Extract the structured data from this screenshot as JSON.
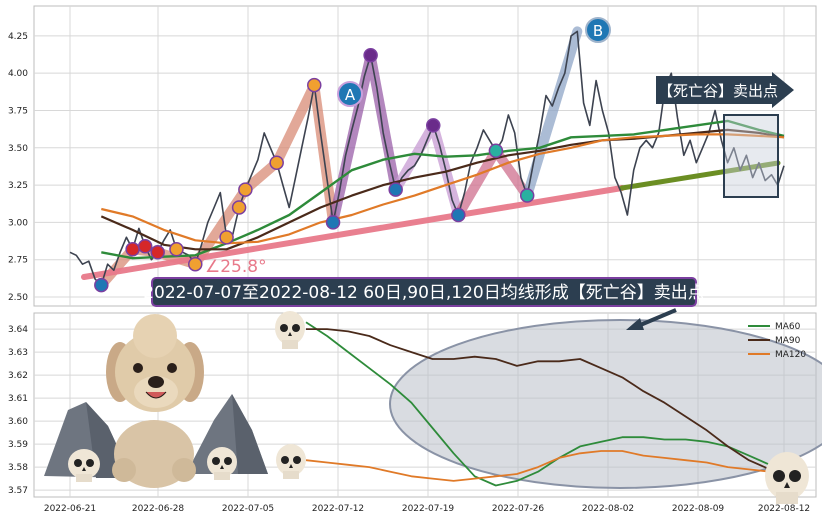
{
  "colors": {
    "price": "#3d4350",
    "ma60": "#2e8b3a",
    "ma90": "#4a2a1a",
    "ma120": "#e07a28",
    "trend": "#e8798a",
    "trend_future": "#6b8e23",
    "banner_bg": "#2c3e50",
    "banner_border": "#7b3fa0",
    "marker_red": "#d62728",
    "marker_orange": "#f0a030",
    "marker_blue": "#1f77b4",
    "marker_teal": "#2ab0a0",
    "marker_purple": "#6a2b8a",
    "ellipse": "#8a93a6"
  },
  "icons": [
    "skull-icon",
    "poodle-mascot",
    "arrow-icon"
  ],
  "annotations": {
    "banner": "2022-07-07至2022-08-12 60日,90日,120日均线形成【死亡谷】卖出点",
    "sign": "【死亡谷】卖出点",
    "angle": "∠25.8°",
    "wave_a": "A",
    "wave_b": "B"
  },
  "chart_data": [
    {
      "type": "line",
      "x_dates": [
        "2022-06-21",
        "2022-06-28",
        "2022-07-05",
        "2022-07-12",
        "2022-07-19",
        "2022-07-26",
        "2022-08-02",
        "2022-08-09",
        "2022-08-12"
      ],
      "yticks": [
        2.5,
        2.75,
        3.0,
        3.25,
        3.5,
        3.75,
        4.0,
        4.25
      ],
      "ylim": [
        2.44,
        4.45
      ],
      "grid": true,
      "series": [
        {
          "values": [
            [
              0,
              2.8
            ],
            [
              1,
              2.78
            ],
            [
              2,
              2.72
            ],
            [
              3,
              2.74
            ],
            [
              4,
              2.62
            ],
            [
              5,
              2.58
            ],
            [
              6,
              2.72
            ],
            [
              7,
              2.68
            ],
            [
              8,
              2.8
            ],
            [
              9,
              2.9
            ],
            [
              10,
              2.82
            ],
            [
              11,
              2.96
            ],
            [
              12,
              2.84
            ],
            [
              13,
              2.75
            ],
            [
              14,
              2.8
            ],
            [
              15,
              2.88
            ],
            [
              16,
              2.95
            ],
            [
              17,
              2.82
            ],
            [
              18,
              2.8
            ],
            [
              19,
              2.78
            ],
            [
              20,
              2.72
            ],
            [
              21,
              2.85
            ],
            [
              22,
              3.0
            ],
            [
              23,
              3.1
            ],
            [
              24,
              3.2
            ],
            [
              25,
              2.9
            ],
            [
              26,
              2.92
            ],
            [
              27,
              3.1
            ],
            [
              28,
              3.22
            ],
            [
              29,
              3.32
            ],
            [
              30,
              3.42
            ],
            [
              31,
              3.6
            ],
            [
              32,
              3.5
            ],
            [
              33,
              3.4
            ],
            [
              34,
              3.25
            ],
            [
              35,
              3.1
            ],
            [
              36,
              3.3
            ],
            [
              37,
              3.5
            ],
            [
              38,
              3.7
            ],
            [
              39,
              3.92
            ],
            [
              40,
              3.6
            ],
            [
              41,
              3.3
            ],
            [
              42,
              3.0
            ],
            [
              43,
              3.2
            ],
            [
              44,
              3.45
            ],
            [
              45,
              3.62
            ],
            [
              46,
              3.78
            ],
            [
              47,
              3.98
            ],
            [
              48,
              4.12
            ],
            [
              49,
              3.9
            ],
            [
              50,
              3.6
            ],
            [
              51,
              3.4
            ],
            [
              52,
              3.22
            ],
            [
              53,
              3.3
            ],
            [
              54,
              3.35
            ],
            [
              55,
              3.38
            ],
            [
              56,
              3.45
            ],
            [
              57,
              3.55
            ],
            [
              58,
              3.65
            ],
            [
              59,
              3.52
            ],
            [
              60,
              3.35
            ],
            [
              61,
              3.15
            ],
            [
              62,
              3.05
            ],
            [
              63,
              3.2
            ],
            [
              64,
              3.4
            ],
            [
              65,
              3.5
            ],
            [
              66,
              3.62
            ],
            [
              67,
              3.55
            ],
            [
              68,
              3.48
            ],
            [
              69,
              3.55
            ],
            [
              70,
              3.72
            ],
            [
              71,
              3.6
            ],
            [
              72,
              3.3
            ],
            [
              73,
              3.18
            ],
            [
              74,
              3.4
            ],
            [
              75,
              3.6
            ],
            [
              76,
              3.85
            ],
            [
              77,
              3.78
            ],
            [
              78,
              3.9
            ],
            [
              79,
              4.0
            ],
            [
              80,
              4.25
            ],
            [
              81,
              4.28
            ],
            [
              82,
              3.8
            ],
            [
              83,
              3.65
            ],
            [
              84,
              3.95
            ],
            [
              85,
              3.75
            ],
            [
              86,
              3.6
            ],
            [
              87,
              3.3
            ],
            [
              88,
              3.2
            ],
            [
              89,
              3.05
            ],
            [
              90,
              3.35
            ],
            [
              91,
              3.5
            ],
            [
              92,
              3.55
            ],
            [
              93,
              3.5
            ],
            [
              94,
              3.6
            ],
            [
              95,
              3.9
            ],
            [
              96,
              4.0
            ],
            [
              97,
              3.7
            ],
            [
              98,
              3.45
            ],
            [
              99,
              3.55
            ],
            [
              100,
              3.4
            ],
            [
              101,
              3.5
            ],
            [
              102,
              3.6
            ],
            [
              103,
              3.75
            ],
            [
              104,
              3.55
            ],
            [
              105,
              3.4
            ],
            [
              106,
              3.5
            ],
            [
              107,
              3.35
            ],
            [
              108,
              3.45
            ],
            [
              109,
              3.3
            ],
            [
              110,
              3.4
            ],
            [
              111,
              3.28
            ],
            [
              112,
              3.32
            ],
            [
              113,
              3.25
            ],
            [
              114,
              3.38
            ]
          ]
        },
        {
          "values": [
            [
              5,
              2.8
            ],
            [
              10,
              2.76
            ],
            [
              15,
              2.77
            ],
            [
              20,
              2.78
            ],
            [
              25,
              2.86
            ],
            [
              30,
              2.95
            ],
            [
              35,
              3.05
            ],
            [
              40,
              3.2
            ],
            [
              45,
              3.35
            ],
            [
              50,
              3.42
            ],
            [
              55,
              3.46
            ],
            [
              60,
              3.44
            ],
            [
              65,
              3.45
            ],
            [
              70,
              3.48
            ],
            [
              75,
              3.5
            ],
            [
              80,
              3.57
            ],
            [
              85,
              3.58
            ],
            [
              90,
              3.59
            ],
            [
              95,
              3.62
            ],
            [
              100,
              3.65
            ],
            [
              105,
              3.68
            ],
            [
              110,
              3.62
            ],
            [
              114,
              3.58
            ]
          ]
        },
        {
          "values": [
            [
              5,
              3.04
            ],
            [
              10,
              2.95
            ],
            [
              15,
              2.85
            ],
            [
              20,
              2.82
            ],
            [
              25,
              2.82
            ],
            [
              30,
              2.9
            ],
            [
              35,
              3.0
            ],
            [
              40,
              3.1
            ],
            [
              45,
              3.18
            ],
            [
              50,
              3.25
            ],
            [
              55,
              3.3
            ],
            [
              60,
              3.34
            ],
            [
              65,
              3.4
            ],
            [
              70,
              3.45
            ],
            [
              75,
              3.48
            ],
            [
              80,
              3.52
            ],
            [
              85,
              3.55
            ],
            [
              90,
              3.56
            ],
            [
              95,
              3.58
            ],
            [
              100,
              3.6
            ],
            [
              105,
              3.62
            ],
            [
              110,
              3.6
            ],
            [
              114,
              3.57
            ]
          ]
        },
        {
          "values": [
            [
              5,
              3.09
            ],
            [
              10,
              3.04
            ],
            [
              15,
              2.95
            ],
            [
              20,
              2.88
            ],
            [
              25,
              2.86
            ],
            [
              30,
              2.87
            ],
            [
              35,
              2.92
            ],
            [
              40,
              3.0
            ],
            [
              45,
              3.05
            ],
            [
              50,
              3.12
            ],
            [
              55,
              3.18
            ],
            [
              60,
              3.25
            ],
            [
              65,
              3.32
            ],
            [
              70,
              3.4
            ],
            [
              75,
              3.46
            ],
            [
              80,
              3.5
            ],
            [
              85,
              3.55
            ],
            [
              90,
              3.57
            ],
            [
              95,
              3.58
            ],
            [
              100,
              3.59
            ],
            [
              105,
              3.59
            ],
            [
              110,
              3.58
            ],
            [
              114,
              3.57
            ]
          ]
        }
      ]
    },
    {
      "type": "line",
      "x_dates": [
        "2022-06-21",
        "2022-06-28",
        "2022-07-05",
        "2022-07-12",
        "2022-07-19",
        "2022-07-26",
        "2022-08-02",
        "2022-08-09",
        "2022-08-12"
      ],
      "yticks": [
        3.57,
        3.58,
        3.59,
        3.6,
        3.61,
        3.62,
        3.63,
        3.64
      ],
      "ylim": [
        3.567,
        3.647
      ],
      "grid": true,
      "legend_position": "top-right",
      "series": [
        {
          "name": "MA60",
          "values": [
            [
              0,
              3.643
            ],
            [
              3,
              3.637
            ],
            [
              6,
              3.63
            ],
            [
              9,
              3.623
            ],
            [
              12,
              3.616
            ],
            [
              15,
              3.608
            ],
            [
              18,
              3.597
            ],
            [
              21,
              3.586
            ],
            [
              24,
              3.576
            ],
            [
              27,
              3.572
            ],
            [
              30,
              3.574
            ],
            [
              33,
              3.578
            ],
            [
              36,
              3.584
            ],
            [
              39,
              3.589
            ],
            [
              42,
              3.591
            ],
            [
              45,
              3.593
            ],
            [
              48,
              3.593
            ],
            [
              51,
              3.592
            ],
            [
              54,
              3.592
            ],
            [
              57,
              3.591
            ],
            [
              60,
              3.589
            ],
            [
              63,
              3.585
            ],
            [
              66,
              3.581
            ],
            [
              68,
              3.578
            ]
          ]
        },
        {
          "name": "MA90",
          "values": [
            [
              0,
              3.64
            ],
            [
              3,
              3.64
            ],
            [
              6,
              3.639
            ],
            [
              9,
              3.637
            ],
            [
              12,
              3.633
            ],
            [
              15,
              3.63
            ],
            [
              18,
              3.627
            ],
            [
              21,
              3.627
            ],
            [
              24,
              3.628
            ],
            [
              27,
              3.627
            ],
            [
              30,
              3.624
            ],
            [
              33,
              3.626
            ],
            [
              36,
              3.626
            ],
            [
              39,
              3.627
            ],
            [
              42,
              3.623
            ],
            [
              45,
              3.619
            ],
            [
              48,
              3.613
            ],
            [
              51,
              3.608
            ],
            [
              54,
              3.602
            ],
            [
              57,
              3.596
            ],
            [
              60,
              3.589
            ],
            [
              63,
              3.583
            ],
            [
              66,
              3.579
            ],
            [
              68,
              3.577
            ]
          ]
        },
        {
          "name": "MA120",
          "values": [
            [
              0,
              3.583
            ],
            [
              3,
              3.582
            ],
            [
              6,
              3.581
            ],
            [
              9,
              3.58
            ],
            [
              12,
              3.578
            ],
            [
              15,
              3.576
            ],
            [
              18,
              3.575
            ],
            [
              21,
              3.574
            ],
            [
              24,
              3.575
            ],
            [
              27,
              3.576
            ],
            [
              30,
              3.577
            ],
            [
              33,
              3.58
            ],
            [
              36,
              3.584
            ],
            [
              39,
              3.586
            ],
            [
              42,
              3.587
            ],
            [
              45,
              3.587
            ],
            [
              48,
              3.585
            ],
            [
              51,
              3.584
            ],
            [
              54,
              3.583
            ],
            [
              57,
              3.582
            ],
            [
              60,
              3.58
            ],
            [
              63,
              3.579
            ],
            [
              66,
              3.578
            ],
            [
              68,
              3.578
            ]
          ]
        }
      ]
    }
  ]
}
